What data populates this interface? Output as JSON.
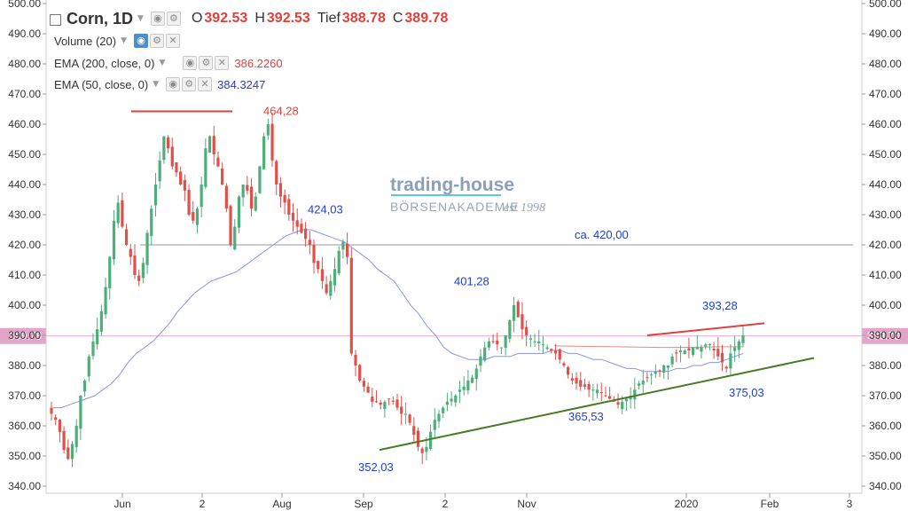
{
  "header": {
    "symbol": "Corn, 1D",
    "o_label": "O",
    "o_value": "392.53",
    "h_label": "H",
    "h_value": "392.53",
    "l_label": "Tief",
    "l_value": "388.78",
    "c_label": "C",
    "c_value": "389.78"
  },
  "indicators": [
    {
      "name": "Volume (20)",
      "value": ""
    },
    {
      "name": "EMA (200, close, 0)",
      "value": "386.2260",
      "color": "#e0413a"
    },
    {
      "name": "EMA (50, close, 0)",
      "value": "384.3247",
      "color": "#1f3fd1"
    }
  ],
  "watermark": {
    "line1": "trading-house",
    "line2": "BÖRSENAKADEMIE",
    "line3": "est 1998"
  },
  "colors": {
    "up": "#4caf7a",
    "down": "#e0504a",
    "ema50": "#8b93e8",
    "ema200": "#e58a80",
    "trend_green": "#4a7a2a",
    "resistance_red": "#e0413a",
    "level_gray": "#9a9a9a",
    "price_line": "#e8a9d6",
    "price_badge": "#e2a5c8"
  },
  "chart_data": {
    "type": "candlestick",
    "symbol": "Corn",
    "timeframe": "1D",
    "ylim": [
      340,
      500
    ],
    "y_ticks": [
      "500.00",
      "490.00",
      "480.00",
      "470.00",
      "460.00",
      "450.00",
      "440.00",
      "430.00",
      "420.00",
      "410.00",
      "400.00",
      "390.00",
      "380.00",
      "370.00",
      "360.00",
      "350.00",
      "340.00"
    ],
    "x_ticks": [
      "Jun",
      "2",
      "Aug",
      "Sep",
      "2",
      "Nov",
      "2020",
      "Feb",
      "3"
    ],
    "last_price": 389.78,
    "last_price_label": "389.78",
    "horizontal_level": 420.0,
    "annotations": [
      {
        "text": "464,28",
        "value": 464.28,
        "color": "#e0413a"
      },
      {
        "text": "424,03",
        "value": 424.03,
        "color": "#1f3fd1"
      },
      {
        "text": "ca. 420,00",
        "value": 420.0,
        "color": "#1f3fd1"
      },
      {
        "text": "401,28",
        "value": 401.28,
        "color": "#1f3fd1"
      },
      {
        "text": "393,28",
        "value": 393.28,
        "color": "#1f3fd1"
      },
      {
        "text": "375,03",
        "value": 375.03,
        "color": "#1f3fd1"
      },
      {
        "text": "365,53",
        "value": 365.53,
        "color": "#1f3fd1"
      },
      {
        "text": "352,03",
        "value": 352.03,
        "color": "#1f3fd1"
      }
    ],
    "close_series": [
      364,
      362,
      358,
      352,
      349,
      354,
      360,
      370,
      375,
      383,
      388,
      392,
      398,
      406,
      416,
      428,
      434,
      426,
      420,
      416,
      410,
      408,
      414,
      424,
      432,
      440,
      448,
      456,
      452,
      446,
      444,
      440,
      438,
      430,
      428,
      432,
      440,
      452,
      456,
      450,
      446,
      440,
      432,
      420,
      426,
      436,
      440,
      438,
      432,
      436,
      446,
      456,
      460,
      448,
      440,
      436,
      434,
      430,
      428,
      426,
      424,
      422,
      420,
      414,
      412,
      408,
      404,
      408,
      412,
      418,
      421,
      416,
      384,
      380,
      375,
      373,
      371,
      368,
      368,
      367,
      368,
      369,
      368,
      366,
      364,
      364,
      361,
      357,
      353,
      351,
      353,
      358,
      362,
      364,
      366,
      368,
      369,
      370,
      372,
      373,
      375,
      376,
      379,
      383,
      386,
      388,
      388,
      387,
      386,
      390,
      395,
      400,
      396,
      392,
      390,
      389,
      388,
      388,
      387,
      386,
      385,
      384,
      382,
      380,
      377,
      375,
      374,
      373,
      373,
      372,
      372,
      372,
      371,
      370,
      369,
      368,
      367,
      368,
      369,
      370,
      372,
      374,
      375,
      376,
      377,
      378,
      378,
      380,
      380,
      383,
      384,
      385,
      385,
      385,
      386,
      386,
      386,
      387,
      387,
      385,
      383,
      381,
      379,
      384,
      386,
      388,
      390
    ],
    "ema50_series": [
      366,
      366,
      367,
      368,
      369,
      370,
      372,
      374,
      377,
      381,
      384,
      386,
      388,
      391,
      394,
      398,
      401,
      404,
      406,
      408,
      409,
      410,
      411,
      413,
      415,
      417,
      419,
      421,
      423,
      424,
      425,
      425,
      424,
      423,
      422,
      421,
      419,
      417,
      415,
      412,
      410,
      408,
      404,
      400,
      397,
      393,
      390,
      386,
      384,
      383,
      382,
      382,
      382,
      383,
      383,
      383,
      384,
      384,
      384,
      384,
      385,
      385,
      384,
      384,
      383,
      382,
      382,
      381,
      380,
      379,
      379,
      378,
      378,
      378,
      378,
      379,
      379,
      380,
      380,
      381,
      381,
      382,
      383,
      384
    ],
    "ema200_series": [
      386.5,
      386.4,
      386.3,
      386.2,
      386.1,
      386.0,
      386.0,
      386.1,
      386.2,
      386.2
    ],
    "support_line": [
      [
        352.03,
        "Sep"
      ],
      [
        382.5,
        "end"
      ]
    ],
    "resistance_line": [
      [
        390.0,
        "Jan"
      ],
      [
        394.0,
        "end"
      ]
    ]
  }
}
